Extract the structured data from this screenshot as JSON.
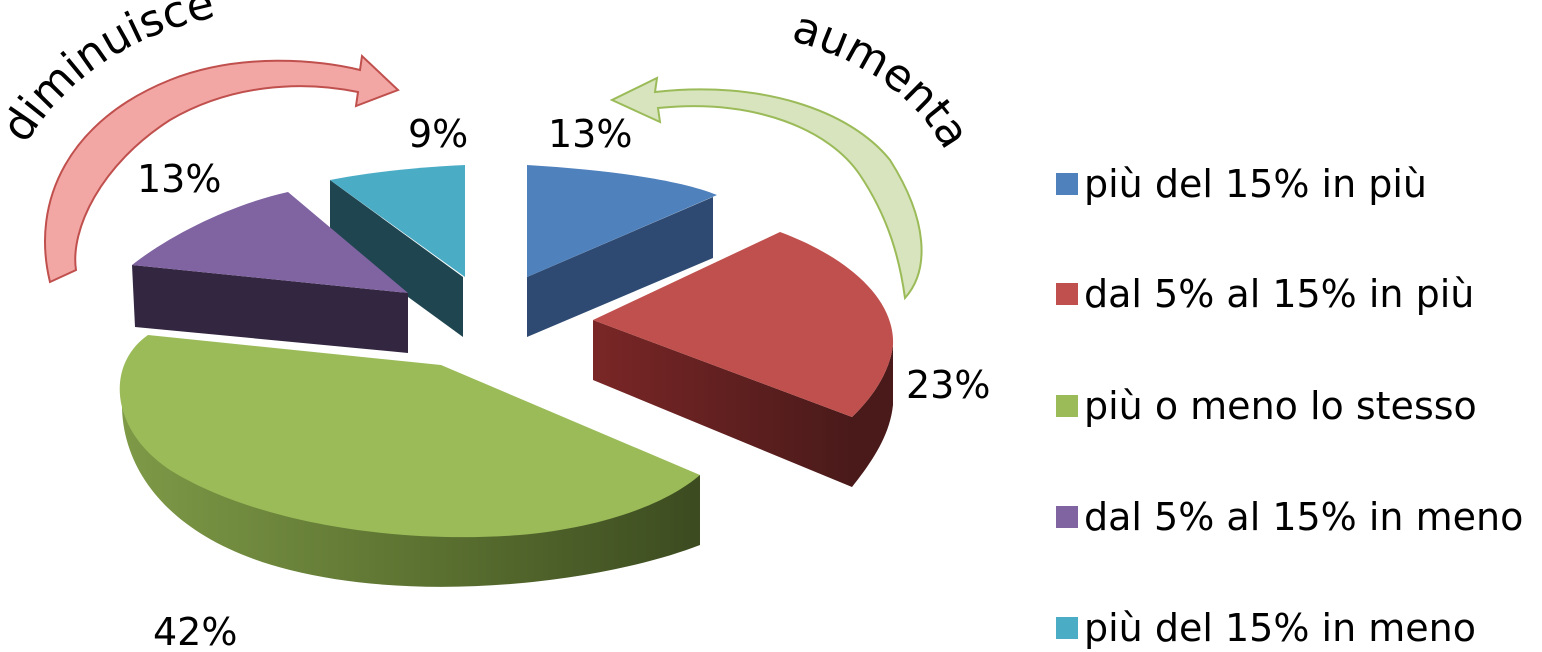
{
  "chart_data": {
    "type": "pie",
    "title": "",
    "categories": [
      "più del 15% in più",
      "dal 5% al 15% in più",
      "più o meno lo stesso",
      "dal 5% al 15% in meno",
      "più del 15% in meno"
    ],
    "values": [
      13,
      23,
      42,
      13,
      9
    ],
    "data_labels": [
      "13%",
      "23%",
      "42%",
      "13%",
      "9%"
    ],
    "colors": [
      "#4F81BD",
      "#C0504D",
      "#9BBB59",
      "#8064A2",
      "#4BACC6"
    ],
    "legend_position": "right",
    "exploded": true,
    "three_d": true,
    "annotations": [
      {
        "text": "aumenta",
        "arrow_color": "#D7E4BD",
        "arrow_stroke": "#9BBB59"
      },
      {
        "text": "diminuisce",
        "arrow_color": "#F2A7A5",
        "arrow_stroke": "#C0504D"
      }
    ]
  }
}
